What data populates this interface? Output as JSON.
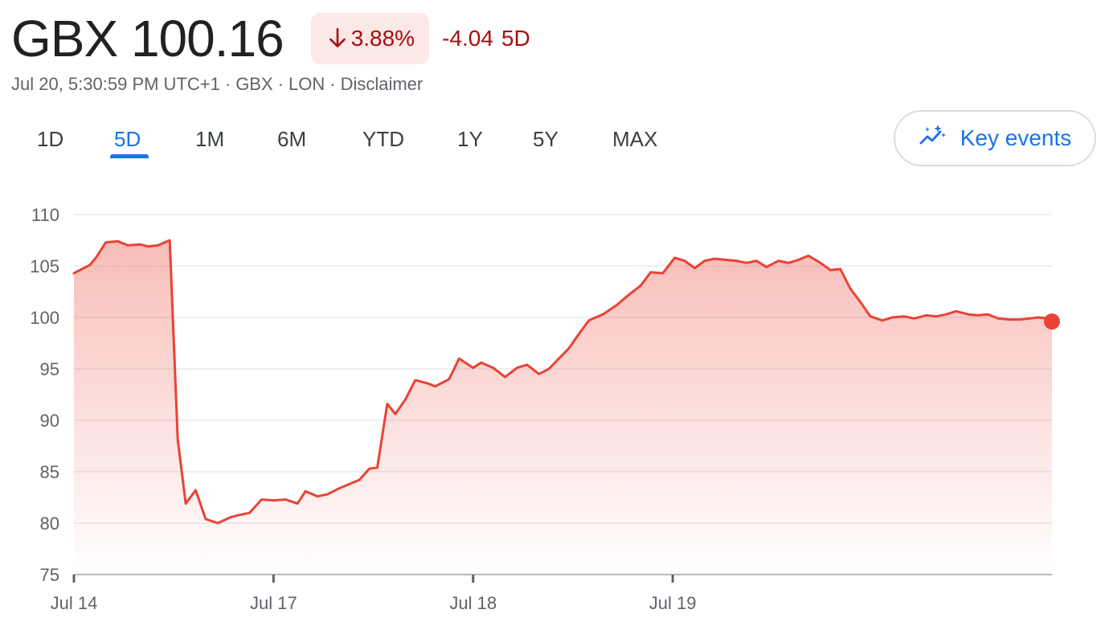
{
  "header": {
    "price": "GBX 100.16",
    "change_percent": "3.88%",
    "change_abs": "-4.04",
    "change_period": "5D",
    "meta": {
      "timestamp": "Jul 20, 5:30:59 PM UTC+1",
      "currency": "GBX",
      "exchange": "LON",
      "disclaimer": "Disclaimer"
    }
  },
  "tabs": [
    {
      "label": "1D",
      "active": false
    },
    {
      "label": "5D",
      "active": true
    },
    {
      "label": "1M",
      "active": false
    },
    {
      "label": "6M",
      "active": false
    },
    {
      "label": "YTD",
      "active": false
    },
    {
      "label": "1Y",
      "active": false
    },
    {
      "label": "5Y",
      "active": false
    },
    {
      "label": "MAX",
      "active": false
    }
  ],
  "key_events": {
    "label": "Key events",
    "icon": "sparkle-trend-icon"
  },
  "colors": {
    "line": "#ea4335",
    "negative_text": "#a50e0e",
    "negative_bg": "#fce8e6",
    "accent": "#1a73e8"
  },
  "chart_data": {
    "type": "area",
    "ylim": [
      75,
      110
    ],
    "yticks": [
      110,
      105,
      100,
      95,
      90,
      85,
      80,
      75
    ],
    "xticks": [
      {
        "label": "Jul 14",
        "x": 0
      },
      {
        "label": "Jul 17",
        "x": 1
      },
      {
        "label": "Jul 18",
        "x": 2
      },
      {
        "label": "Jul 19",
        "x": 3
      }
    ],
    "xlim": [
      0,
      4.9
    ],
    "grid": true,
    "series": [
      {
        "x": [
          0,
          0.08,
          0.11,
          0.16,
          0.22,
          0.27,
          0.33,
          0.37,
          0.42,
          0.48,
          0.52,
          0.56,
          0.61,
          0.66,
          0.72,
          0.79,
          0.83,
          0.88,
          0.94,
          1.0,
          1.06,
          1.12,
          1.16,
          1.22,
          1.27,
          1.32,
          1.38,
          1.43,
          1.48,
          1.52,
          1.57,
          1.61,
          1.66,
          1.71,
          1.77,
          1.81,
          1.88,
          1.93,
          2.0,
          2.04,
          2.1,
          2.16,
          2.22,
          2.27,
          2.33,
          2.38,
          2.43,
          2.48,
          2.53,
          2.58,
          2.65,
          2.72,
          2.78,
          2.84,
          2.89,
          2.95,
          3.01,
          3.06,
          3.11,
          3.16,
          3.21,
          3.26,
          3.32,
          3.37,
          3.42,
          3.47,
          3.53,
          3.58,
          3.63,
          3.68,
          3.74,
          3.79,
          3.84,
          3.89,
          3.94,
          3.99,
          4.05,
          4.1,
          4.16,
          4.21,
          4.27,
          4.32,
          4.37,
          4.42,
          4.48,
          4.53,
          4.58,
          4.63,
          4.69,
          4.74,
          4.79,
          4.83,
          4.88,
          4.9
        ],
        "y": [
          104.3,
          105.1,
          105.8,
          107.3,
          107.4,
          107.0,
          107.1,
          106.9,
          107.0,
          107.5,
          88.1,
          81.9,
          83.2,
          80.4,
          80.0,
          80.6,
          80.8,
          81.0,
          82.3,
          82.2,
          82.3,
          81.9,
          83.1,
          82.6,
          82.8,
          83.3,
          83.8,
          84.2,
          85.3,
          85.4,
          91.6,
          90.6,
          92.0,
          93.9,
          93.6,
          93.3,
          94.0,
          96.0,
          95.1,
          95.6,
          95.1,
          94.2,
          95.1,
          95.4,
          94.5,
          95.0,
          96.0,
          97.0,
          98.4,
          99.7,
          100.3,
          101.2,
          102.2,
          103.1,
          104.4,
          104.3,
          105.8,
          105.5,
          104.8,
          105.5,
          105.7,
          105.6,
          105.5,
          105.3,
          105.5,
          104.9,
          105.5,
          105.3,
          105.6,
          106.0,
          105.3,
          104.6,
          104.7,
          102.8,
          101.5,
          100.1,
          99.7,
          100.0,
          100.1,
          99.9,
          100.2,
          100.1,
          100.3,
          100.6,
          100.3,
          100.2,
          100.3,
          99.9,
          99.8,
          99.8,
          99.9,
          100.0,
          99.9,
          99.6
        ]
      }
    ]
  }
}
